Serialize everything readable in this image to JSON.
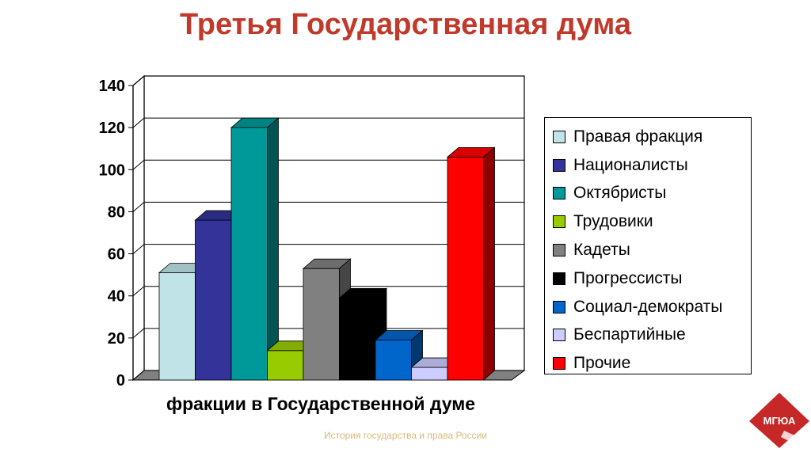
{
  "title": "Третья Государственная дума",
  "footer": "История государства и права России",
  "logo_text": "МГЮА",
  "chart_data": {
    "type": "bar",
    "xlabel": "фракции в Государственной думе",
    "ylim": [
      0,
      140
    ],
    "yticks": [
      0,
      20,
      40,
      60,
      80,
      100,
      120,
      140
    ],
    "grid": true,
    "legend_position": "right",
    "series": [
      {
        "name": "Правая фракция",
        "value": 51,
        "color": "#bfe3e6"
      },
      {
        "name": "Националисты",
        "value": 76,
        "color": "#333399"
      },
      {
        "name": "Октябристы",
        "value": 120,
        "color": "#009999"
      },
      {
        "name": "Трудовики",
        "value": 14,
        "color": "#99cc00"
      },
      {
        "name": "Кадеты",
        "value": 53,
        "color": "#808080"
      },
      {
        "name": "Прогрессисты",
        "value": 39,
        "color": "#000000"
      },
      {
        "name": "Социал-демократы",
        "value": 19,
        "color": "#0066cc"
      },
      {
        "name": "Беспартийные",
        "value": 6,
        "color": "#ccccff"
      },
      {
        "name": "Прочие",
        "value": 106,
        "color": "#ff0000"
      }
    ]
  }
}
